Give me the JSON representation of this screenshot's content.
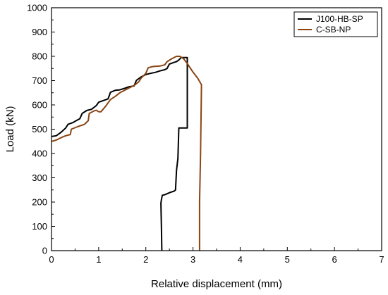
{
  "chart_data": {
    "type": "line",
    "title": "",
    "xlabel": "Relative displacement (mm)",
    "ylabel": "Load (kN)",
    "xlim": [
      0,
      7
    ],
    "ylim": [
      0,
      1000
    ],
    "x_ticks": [
      "0",
      "1",
      "2",
      "3",
      "4",
      "5",
      "6",
      "7"
    ],
    "y_ticks": [
      "0",
      "100",
      "200",
      "300",
      "400",
      "500",
      "600",
      "700",
      "800",
      "900",
      "1000"
    ],
    "grid": false,
    "legend_position": "top-right",
    "series": [
      {
        "name": "J100-HB-SP",
        "color": "#000000",
        "points": [
          [
            0.0,
            470
          ],
          [
            0.1,
            473
          ],
          [
            0.2,
            487
          ],
          [
            0.3,
            505
          ],
          [
            0.35,
            520
          ],
          [
            0.45,
            527
          ],
          [
            0.55,
            538
          ],
          [
            0.6,
            543
          ],
          [
            0.65,
            565
          ],
          [
            0.75,
            577
          ],
          [
            0.85,
            582
          ],
          [
            0.95,
            597
          ],
          [
            1.0,
            611
          ],
          [
            1.1,
            618
          ],
          [
            1.2,
            625
          ],
          [
            1.25,
            652
          ],
          [
            1.35,
            660
          ],
          [
            1.45,
            662
          ],
          [
            1.55,
            668
          ],
          [
            1.65,
            675
          ],
          [
            1.75,
            678
          ],
          [
            1.8,
            701
          ],
          [
            1.9,
            715
          ],
          [
            2.0,
            725
          ],
          [
            2.1,
            730
          ],
          [
            2.2,
            734
          ],
          [
            2.3,
            740
          ],
          [
            2.4,
            745
          ],
          [
            2.45,
            750
          ],
          [
            2.5,
            768
          ],
          [
            2.6,
            775
          ],
          [
            2.65,
            778
          ],
          [
            2.7,
            785
          ],
          [
            2.75,
            795
          ],
          [
            2.88,
            795
          ],
          [
            2.88,
            505
          ],
          [
            2.75,
            505
          ],
          [
            2.7,
            505
          ],
          [
            2.68,
            380
          ],
          [
            2.65,
            330
          ],
          [
            2.63,
            250
          ],
          [
            2.6,
            245
          ],
          [
            2.52,
            240
          ],
          [
            2.4,
            230
          ],
          [
            2.35,
            228
          ],
          [
            2.33,
            210
          ],
          [
            2.32,
            195
          ],
          [
            2.33,
            100
          ],
          [
            2.34,
            0
          ]
        ]
      },
      {
        "name": "C-SB-NP",
        "color": "#8B4513",
        "points": [
          [
            0.0,
            450
          ],
          [
            0.1,
            455
          ],
          [
            0.2,
            465
          ],
          [
            0.3,
            473
          ],
          [
            0.4,
            478
          ],
          [
            0.42,
            500
          ],
          [
            0.55,
            510
          ],
          [
            0.7,
            520
          ],
          [
            0.78,
            535
          ],
          [
            0.8,
            565
          ],
          [
            0.9,
            575
          ],
          [
            0.95,
            578
          ],
          [
            1.0,
            572
          ],
          [
            1.05,
            572
          ],
          [
            1.15,
            595
          ],
          [
            1.25,
            622
          ],
          [
            1.35,
            635
          ],
          [
            1.45,
            650
          ],
          [
            1.55,
            660
          ],
          [
            1.65,
            670
          ],
          [
            1.75,
            680
          ],
          [
            1.85,
            695
          ],
          [
            1.9,
            710
          ],
          [
            2.0,
            730
          ],
          [
            2.05,
            753
          ],
          [
            2.15,
            758
          ],
          [
            2.3,
            760
          ],
          [
            2.4,
            765
          ],
          [
            2.45,
            778
          ],
          [
            2.55,
            790
          ],
          [
            2.65,
            800
          ],
          [
            2.72,
            800
          ],
          [
            2.8,
            790
          ],
          [
            2.88,
            770
          ],
          [
            3.0,
            735
          ],
          [
            3.1,
            710
          ],
          [
            3.18,
            683
          ],
          [
            3.16,
            400
          ],
          [
            3.14,
            200
          ],
          [
            3.14,
            0
          ]
        ]
      }
    ]
  }
}
